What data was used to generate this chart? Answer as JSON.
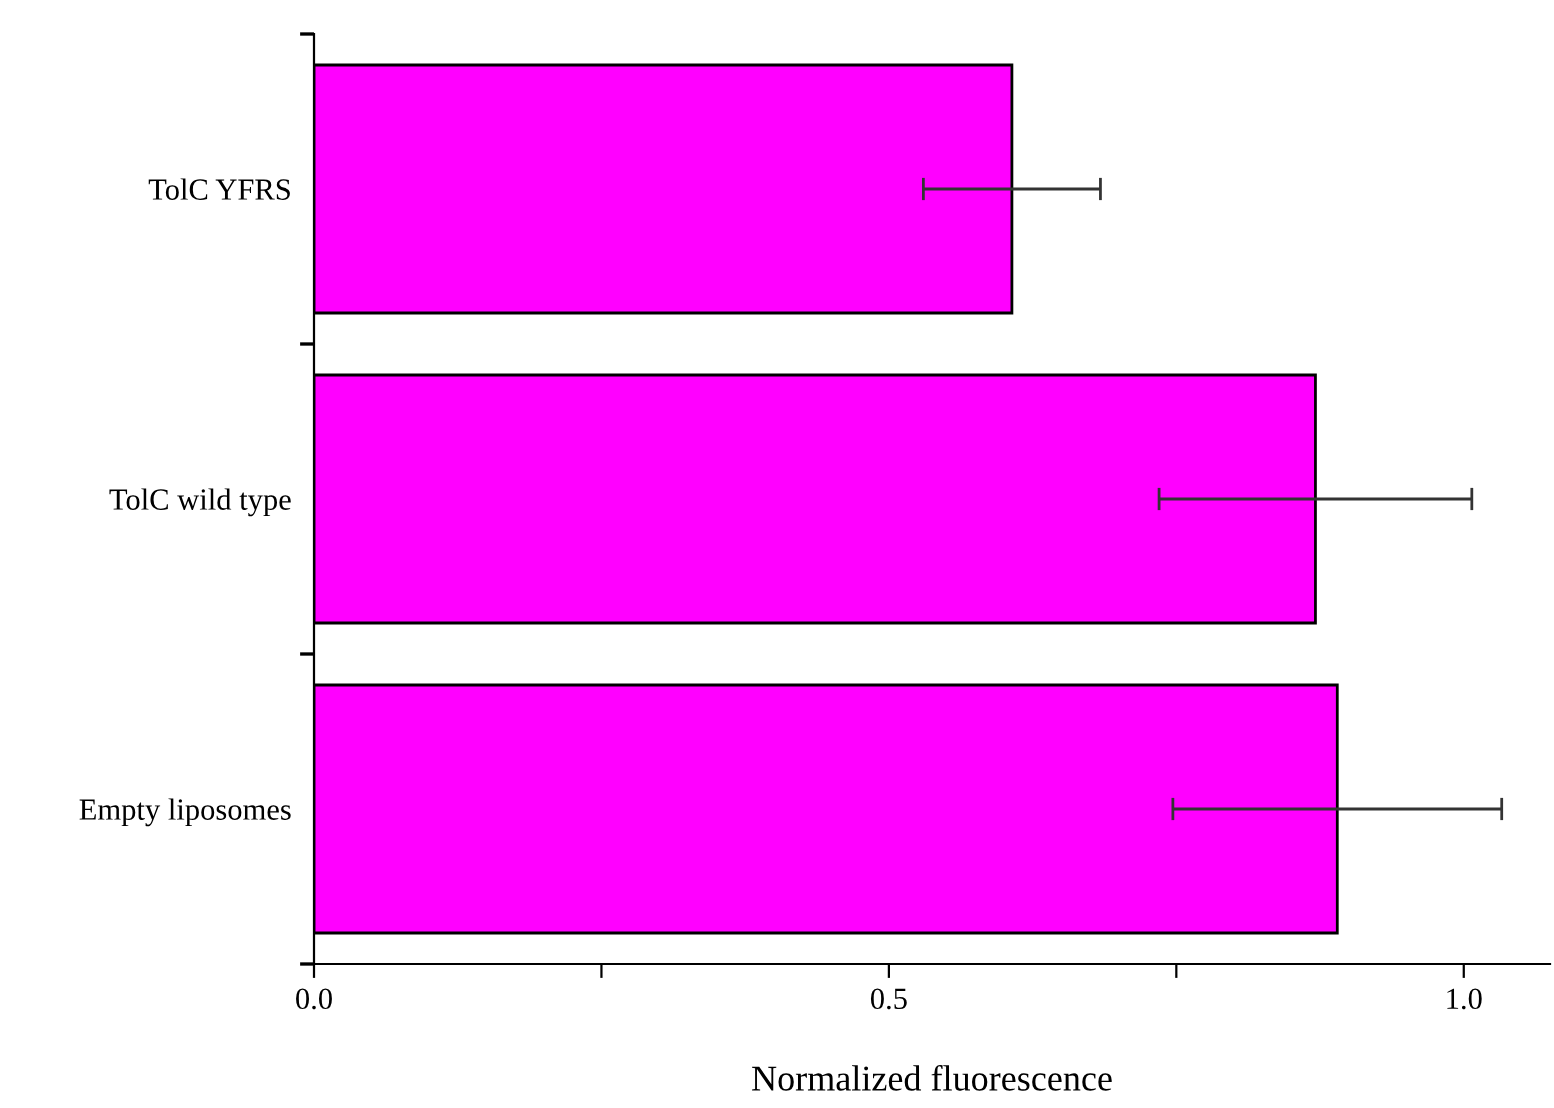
{
  "chart_data": {
    "type": "bar",
    "orientation": "horizontal",
    "xlabel": "Normalized fluorescence",
    "categories": [
      "TolC YFRS",
      "TolC wild type",
      "Empty liposomes"
    ],
    "values": [
      0.607,
      0.871,
      0.89
    ],
    "errors": [
      0.077,
      0.136,
      0.143
    ],
    "color": "#ff00ff",
    "xlim": [
      0,
      1.075
    ],
    "xticks": [
      {
        "value": 0,
        "label": "0.0"
      },
      {
        "value": 0.25,
        "label": null
      },
      0.5,
      {
        "value": 0.75,
        "label": null
      },
      {
        "value": 1,
        "label": "1.0"
      }
    ]
  }
}
